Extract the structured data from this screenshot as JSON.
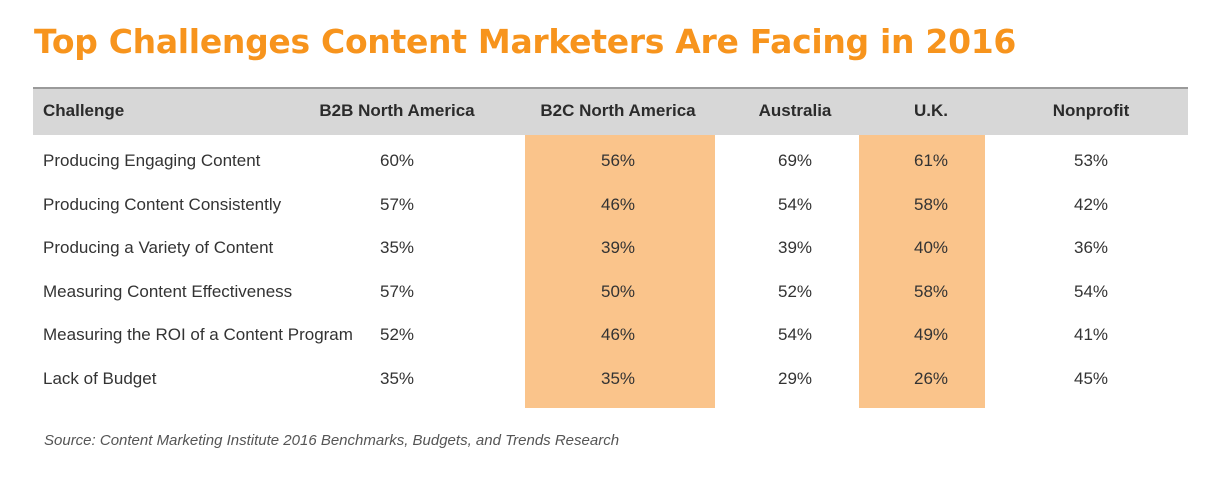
{
  "chart_data": {
    "type": "table",
    "title": "Top Challenges Content Marketers Are Facing in 2016",
    "columns": [
      "Challenge",
      "B2B North America",
      "B2C North America",
      "Australia",
      "U.K.",
      "Nonprofit"
    ],
    "highlighted_columns": [
      "B2C North America",
      "U.K."
    ],
    "rows": [
      {
        "challenge": "Producing Engaging Content",
        "values": [
          "60%",
          "56%",
          "69%",
          "61%",
          "53%"
        ]
      },
      {
        "challenge": "Producing Content Consistently",
        "values": [
          "57%",
          "46%",
          "54%",
          "58%",
          "42%"
        ]
      },
      {
        "challenge": "Producing a Variety of Content",
        "values": [
          "35%",
          "39%",
          "39%",
          "40%",
          "36%"
        ]
      },
      {
        "challenge": "Measuring Content Effectiveness",
        "values": [
          "57%",
          "50%",
          "52%",
          "58%",
          "54%"
        ]
      },
      {
        "challenge": "Measuring the ROI of a Content Program",
        "values": [
          "52%",
          "46%",
          "54%",
          "49%",
          "41%"
        ]
      },
      {
        "challenge": "Lack of Budget",
        "values": [
          "35%",
          "35%",
          "29%",
          "26%",
          "45%"
        ]
      }
    ],
    "source": "Source: Content Marketing Institute 2016 Benchmarks, Budgets, and Trends Research"
  },
  "colors": {
    "title": "#F7941D",
    "header_background": "#D7D7D7",
    "highlight": "#FAC48B"
  }
}
